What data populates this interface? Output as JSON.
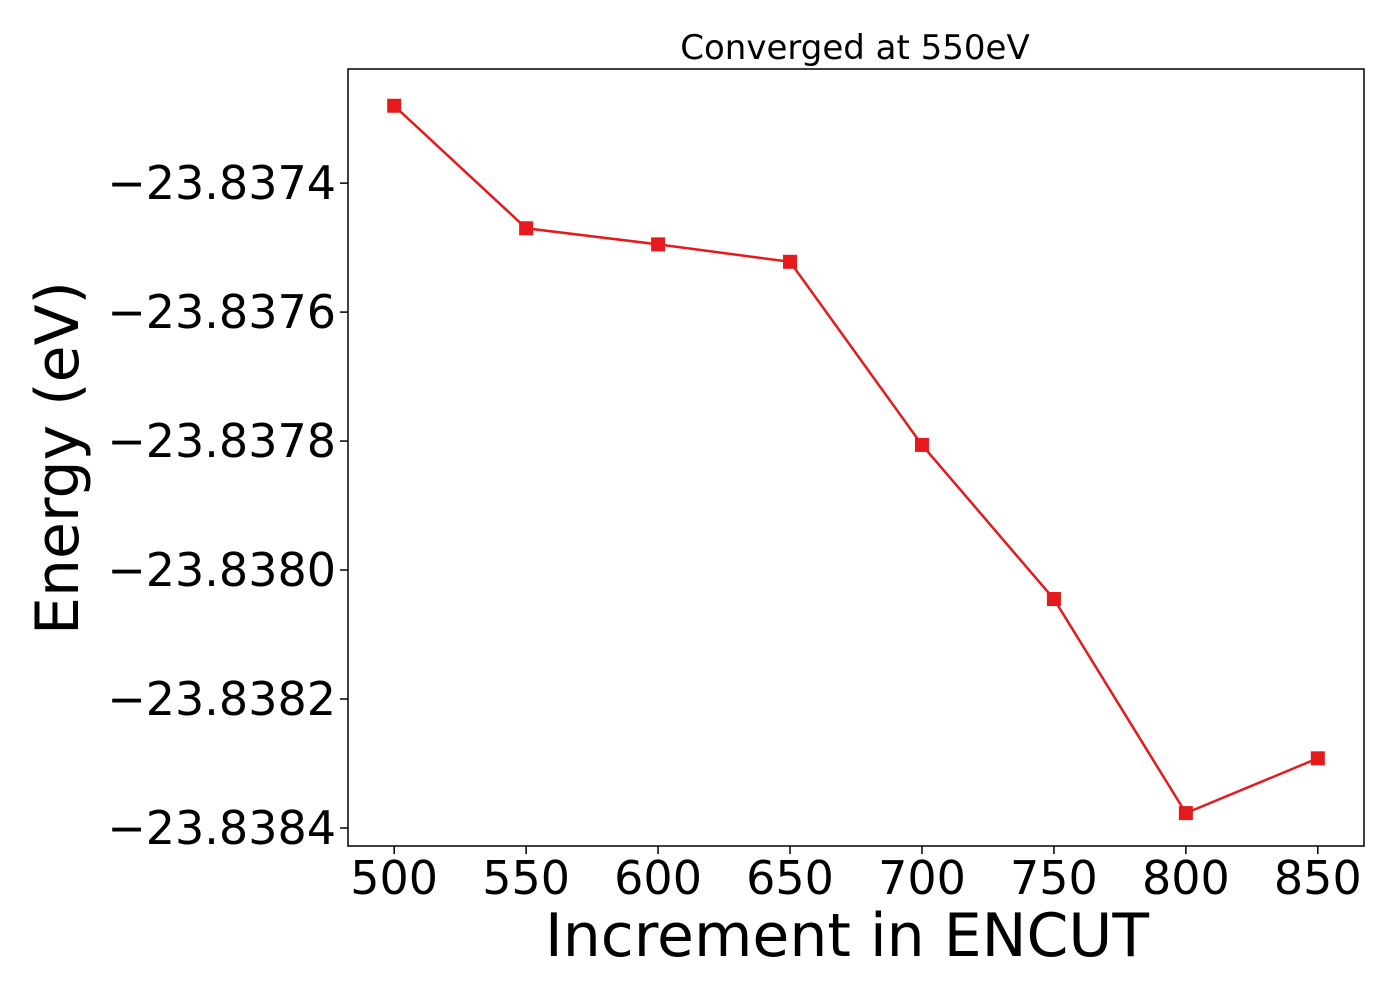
{
  "chart_data": {
    "type": "line",
    "title": "Converged at 550eV",
    "xlabel": "Increment in ENCUT",
    "ylabel": "Energy (eV)",
    "x": [
      500,
      550,
      600,
      650,
      700,
      750,
      800,
      850
    ],
    "series": [
      {
        "values": [
          -23.83728,
          -23.83747,
          -23.837495,
          -23.837522,
          -23.837806,
          -23.838045,
          -23.838377,
          -23.838292
        ],
        "color": "#e41a1c",
        "marker": "square"
      }
    ],
    "xticks": [
      500,
      550,
      600,
      650,
      700,
      750,
      800,
      850
    ],
    "yticks": [
      -23.8374,
      -23.8376,
      -23.8378,
      -23.838,
      -23.8382,
      -23.8384
    ],
    "ytick_labels": [
      "−23.8374",
      "−23.8376",
      "−23.8378",
      "−23.8380",
      "−23.8382",
      "−23.8384"
    ],
    "xlim": [
      482.5,
      867.5
    ],
    "ylim": [
      -23.838428,
      -23.837223
    ],
    "grid": false,
    "legend": "none"
  }
}
